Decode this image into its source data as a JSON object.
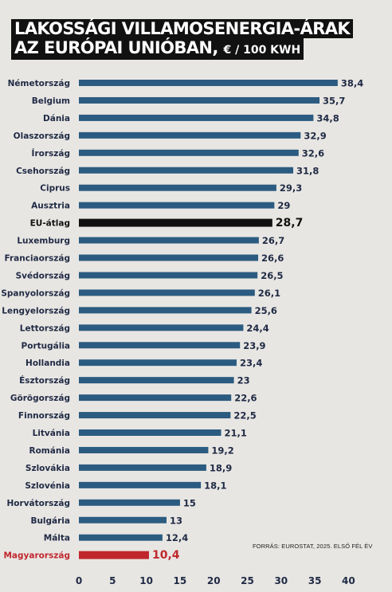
{
  "colors": {
    "background": "#e8e6e3",
    "bar": "#2b5b80",
    "highlight_average": "#111111",
    "highlight_hungary": "#c0272d",
    "text": "#1f2a44"
  },
  "chart_data": {
    "type": "bar",
    "orientation": "horizontal",
    "title_line1": "Lakossági villamosenergia-árak",
    "title_line2": "az Európai Unióban,",
    "title_unit": "€ / 100 kWh",
    "source": "FORRÁS: EUROSTAT, 2025. ELSŐ FÉL ÉV",
    "xlim": [
      0,
      40
    ],
    "xticks": [
      "0",
      "5",
      "10",
      "15",
      "20",
      "25",
      "30",
      "35",
      "40"
    ],
    "grid": false,
    "categories": [
      "Németország",
      "Belgium",
      "Dánia",
      "Olaszország",
      "Írország",
      "Csehország",
      "Ciprus",
      "Ausztria",
      "EU-átlag",
      "Luxemburg",
      "Franciaország",
      "Svédország",
      "Spanyolország",
      "Lengyelország",
      "Lettország",
      "Portugália",
      "Hollandia",
      "Észtország",
      "Görögország",
      "Finnország",
      "Litvánia",
      "Románia",
      "Szlovákia",
      "Szlovénia",
      "Horvátország",
      "Bulgária",
      "Málta",
      "Magyarország"
    ],
    "values": [
      38.4,
      35.7,
      34.8,
      32.9,
      32.6,
      31.8,
      29.3,
      29,
      28.7,
      26.7,
      26.6,
      26.5,
      26.1,
      25.6,
      24.4,
      23.9,
      23.4,
      23,
      22.6,
      22.5,
      21.1,
      19.2,
      18.9,
      18.1,
      15,
      13,
      12.4,
      10.4
    ],
    "value_labels": [
      "38,4",
      "35,7",
      "34,8",
      "32,9",
      "32,6",
      "31,8",
      "29,3",
      "29",
      "28,7",
      "26,7",
      "26,6",
      "26,5",
      "26,1",
      "25,6",
      "24,4",
      "23,9",
      "23,4",
      "23",
      "22,6",
      "22,5",
      "21,1",
      "19,2",
      "18,9",
      "18,1",
      "15",
      "13",
      "12,4",
      "10,4"
    ],
    "highlight": {
      "EU-átlag": "average",
      "Magyarország": "hungary"
    }
  }
}
